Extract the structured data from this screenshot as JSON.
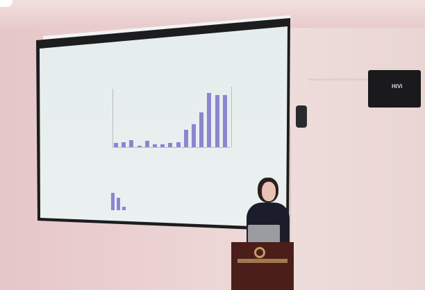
{
  "scene": {
    "description_colors": {
      "wall": "#e8cfd0",
      "screen": "#e9f0f0",
      "bars": "#8a86cf",
      "podium": "#4b1e1a"
    },
    "speaker_brand": "HiVi"
  }
}
